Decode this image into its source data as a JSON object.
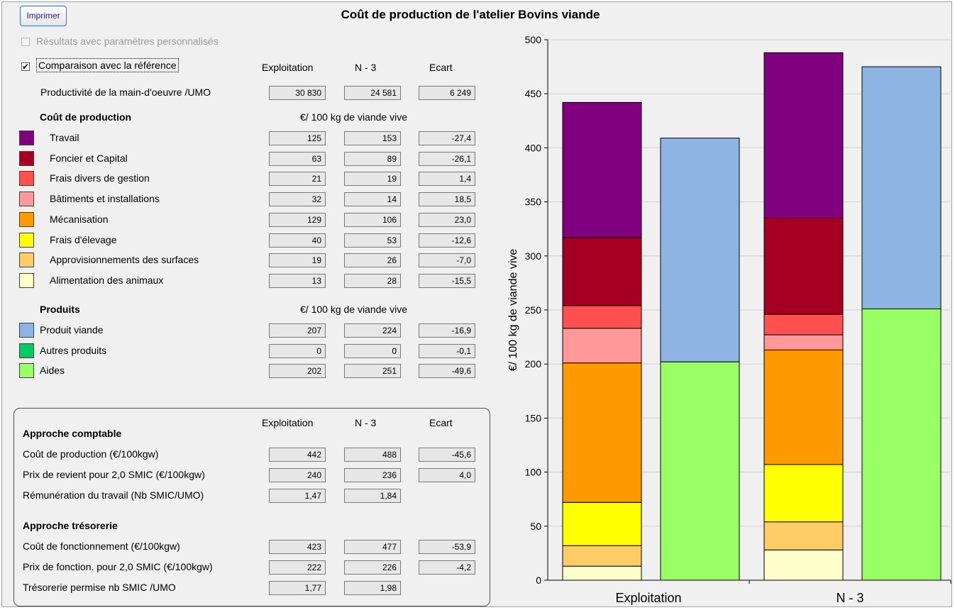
{
  "print_button": "Imprimer",
  "title": "Coût de production de l'atelier Bovins viande",
  "options": {
    "personalized_label": "Résultats avec paramètres personnalisés",
    "personalized_checked": false,
    "comparison_label": "Comparaison avec la référence",
    "comparison_checked": true
  },
  "columns": {
    "exploitation": "Exploitation",
    "ref": "N - 3",
    "ecart": "Ecart"
  },
  "productivity": {
    "label": "Productivité de la main-d'oeuvre /UMO",
    "exploitation": "30 830",
    "ref": "24 581",
    "ecart": "6 249"
  },
  "costs": {
    "heading": "Coût de production",
    "unit": "€/ 100 kg de viande vive",
    "rows": [
      {
        "label": "Travail",
        "color": "#800080",
        "exploitation": "125",
        "ref": "153",
        "ecart": "-27,4"
      },
      {
        "label": "Foncier et Capital",
        "color": "#a50021",
        "exploitation": "63",
        "ref": "89",
        "ecart": "-26,1"
      },
      {
        "label": "Frais divers de gestion",
        "color": "#ff5050",
        "exploitation": "21",
        "ref": "19",
        "ecart": "1,4"
      },
      {
        "label": "Bâtiments et installations",
        "color": "#ff9999",
        "exploitation": "32",
        "ref": "14",
        "ecart": "18,5"
      },
      {
        "label": "Mécanisation",
        "color": "#ff9900",
        "exploitation": "129",
        "ref": "106",
        "ecart": "23,0"
      },
      {
        "label": "Frais d'élevage",
        "color": "#ffff00",
        "exploitation": "40",
        "ref": "53",
        "ecart": "-12,6"
      },
      {
        "label": "Approvisionnements des surfaces",
        "color": "#ffcc66",
        "exploitation": "19",
        "ref": "26",
        "ecart": "-7,0"
      },
      {
        "label": "Alimentation des animaux",
        "color": "#ffffcc",
        "exploitation": "13",
        "ref": "28",
        "ecart": "-15,5"
      }
    ]
  },
  "products": {
    "heading": "Produits",
    "unit": "€/ 100 kg de viande vive",
    "rows": [
      {
        "label": "Produit viande",
        "color": "#8db4e2",
        "exploitation": "207",
        "ref": "224",
        "ecart": "-16,9"
      },
      {
        "label": "Autres produits",
        "color": "#00cc66",
        "exploitation": "0",
        "ref": "0",
        "ecart": "-0,1"
      },
      {
        "label": "Aides",
        "color": "#99ff66",
        "exploitation": "202",
        "ref": "251",
        "ecart": "-49,6"
      }
    ]
  },
  "approche_comptable": {
    "heading": "Approche comptable",
    "rows": [
      {
        "label": "Coût de production (€/100kgw)",
        "exploitation": "442",
        "ref": "488",
        "ecart": "-45,6"
      },
      {
        "label": "Prix de revient pour 2,0 SMIC (€/100kgw)",
        "exploitation": "240",
        "ref": "236",
        "ecart": "4,0"
      },
      {
        "label": "Rémunération du travail (Nb SMIC/UMO)",
        "exploitation": "1,47",
        "ref": "1,84",
        "ecart": null
      }
    ]
  },
  "approche_tresorerie": {
    "heading": "Approche trésorerie",
    "rows": [
      {
        "label": "Coût de fonctionnement (€/100kgw)",
        "exploitation": "423",
        "ref": "477",
        "ecart": "-53,9"
      },
      {
        "label": "Prix de fonction. pour 2,0 SMIC (€/100kgw)",
        "exploitation": "222",
        "ref": "226",
        "ecart": "-4,2"
      },
      {
        "label": "Trésorerie permise nb SMIC /UMO",
        "exploitation": "1,77",
        "ref": "1,98",
        "ecart": null
      }
    ]
  },
  "chart_data": {
    "type": "bar",
    "stacked": true,
    "ylabel": "€/ 100 kg de viande vive",
    "ylim": [
      0,
      500
    ],
    "yticks": [
      0,
      50,
      100,
      150,
      200,
      250,
      300,
      350,
      400,
      450,
      500
    ],
    "categories": [
      "Exploitation",
      "N - 3"
    ],
    "groups": [
      {
        "category": "Exploitation",
        "cost_stack": [
          {
            "name": "Alimentation des animaux",
            "value": 13,
            "color": "#ffffcc"
          },
          {
            "name": "Approvisionnements des surfaces",
            "value": 19,
            "color": "#ffcc66"
          },
          {
            "name": "Frais d'élevage",
            "value": 40,
            "color": "#ffff00"
          },
          {
            "name": "Mécanisation",
            "value": 129,
            "color": "#ff9900"
          },
          {
            "name": "Bâtiments et installations",
            "value": 32,
            "color": "#ff9999"
          },
          {
            "name": "Frais divers de gestion",
            "value": 21,
            "color": "#ff5050"
          },
          {
            "name": "Foncier et Capital",
            "value": 63,
            "color": "#a50021"
          },
          {
            "name": "Travail",
            "value": 125,
            "color": "#800080"
          }
        ],
        "product_stack": [
          {
            "name": "Aides",
            "value": 202,
            "color": "#99ff66"
          },
          {
            "name": "Autres produits",
            "value": 0,
            "color": "#00cc66"
          },
          {
            "name": "Produit viande",
            "value": 207,
            "color": "#8db4e2"
          }
        ]
      },
      {
        "category": "N - 3",
        "cost_stack": [
          {
            "name": "Alimentation des animaux",
            "value": 28,
            "color": "#ffffcc"
          },
          {
            "name": "Approvisionnements des surfaces",
            "value": 26,
            "color": "#ffcc66"
          },
          {
            "name": "Frais d'élevage",
            "value": 53,
            "color": "#ffff00"
          },
          {
            "name": "Mécanisation",
            "value": 106,
            "color": "#ff9900"
          },
          {
            "name": "Bâtiments et installations",
            "value": 14,
            "color": "#ff9999"
          },
          {
            "name": "Frais divers de gestion",
            "value": 19,
            "color": "#ff5050"
          },
          {
            "name": "Foncier et Capital",
            "value": 89,
            "color": "#a50021"
          },
          {
            "name": "Travail",
            "value": 153,
            "color": "#800080"
          }
        ],
        "product_stack": [
          {
            "name": "Aides",
            "value": 251,
            "color": "#99ff66"
          },
          {
            "name": "Autres produits",
            "value": 0,
            "color": "#00cc66"
          },
          {
            "name": "Produit viande",
            "value": 224,
            "color": "#8db4e2"
          }
        ]
      }
    ]
  }
}
